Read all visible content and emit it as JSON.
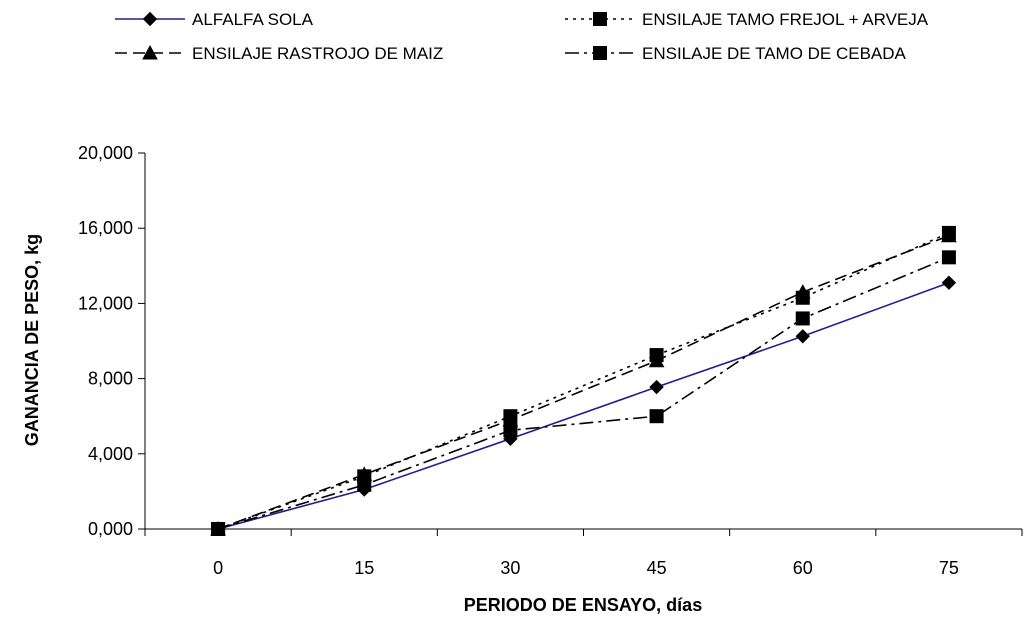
{
  "chart_data": {
    "type": "line",
    "xlabel": "PERIODO DE ENSAYO, días",
    "ylabel": "GANANCIA DE PESO, kg",
    "x": [
      "0",
      "15",
      "30",
      "45",
      "60",
      "75"
    ],
    "ylim": [
      0,
      20000
    ],
    "yticks": [
      "0,000",
      "4,000",
      "8,000",
      "12,000",
      "16,000",
      "20,000"
    ],
    "grid": false,
    "legend_position": "top",
    "series": [
      {
        "name": "ALFALFA SOLA",
        "values": [
          0,
          2100,
          4800,
          7550,
          10250,
          13100
        ],
        "color": "#1f1f8f",
        "dash": "solid",
        "marker": "diamond"
      },
      {
        "name": "ENSILAJE TAMO FREJOL + ARVEJA",
        "values": [
          0,
          2800,
          6000,
          9250,
          12300,
          15750
        ],
        "color": "#000000",
        "dash": "dot",
        "marker": "square"
      },
      {
        "name": "ENSILAJE RASTROJO DE MAIZ",
        "values": [
          0,
          2900,
          5800,
          8950,
          12600,
          15600
        ],
        "color": "#000000",
        "dash": "dash",
        "marker": "triangle"
      },
      {
        "name": "ENSILAJE DE TAMO DE CEBADA",
        "values": [
          0,
          2350,
          5250,
          6000,
          11200,
          14450
        ],
        "color": "#000000",
        "dash": "dashdot",
        "marker": "square"
      }
    ]
  }
}
